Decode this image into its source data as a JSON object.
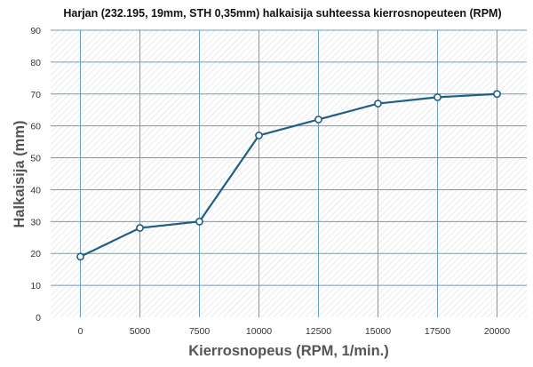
{
  "chart_data": {
    "type": "line",
    "title": "Harjan (232.195, 19mm, STH 0,35mm) halkaisija suhteessa kierrosnopeuteen (RPM)",
    "xlabel": "Kierrosnopeus (RPM, 1/min.)",
    "ylabel": "Halkaisija (mm)",
    "x": [
      0,
      5000,
      7500,
      10000,
      12500,
      15000,
      17500,
      20000
    ],
    "x_tick_labels": [
      "0",
      "5000",
      "7500",
      "10000",
      "12500",
      "15000",
      "17500",
      "20000"
    ],
    "series": [
      {
        "values": [
          19,
          28,
          30,
          57,
          62,
          67,
          69,
          70
        ]
      }
    ],
    "ylim": [
      0,
      90
    ],
    "y_ticks": [
      0,
      10,
      20,
      30,
      40,
      50,
      60,
      70,
      80,
      90
    ],
    "grid": true,
    "legend": "none",
    "colors": {
      "line": "#1f5f86",
      "marker_fill": "#ffffff",
      "grid": "#6a9fc0",
      "hatch": "#dcdcdc"
    }
  }
}
